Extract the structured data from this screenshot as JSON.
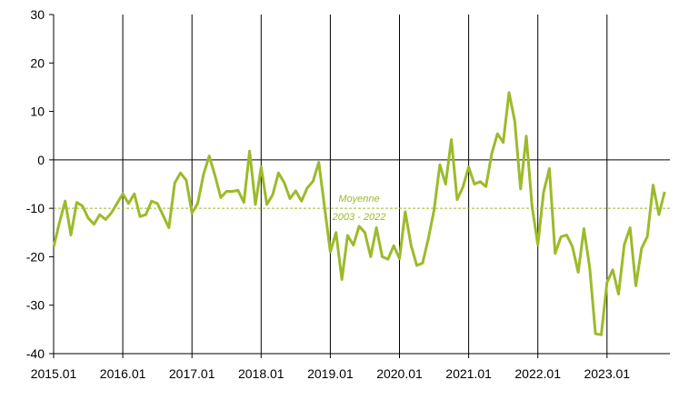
{
  "chart_data": {
    "type": "line",
    "title": "",
    "xlabel": "",
    "ylabel": "",
    "ylim": [
      -40,
      30
    ],
    "yticks": [
      30,
      20,
      10,
      0,
      -10,
      -20,
      -30,
      -40
    ],
    "xticks": [
      "2015.01",
      "2016.01",
      "2017.01",
      "2018.01",
      "2019.01",
      "2020.01",
      "2021.01",
      "2022.01",
      "2023.01"
    ],
    "vertical_gridlines": true,
    "horizontal_gridlines": false,
    "legend": "none",
    "line_color": "#9bbb2a",
    "reference_line": {
      "value": -10,
      "label_line1": "Moyenne",
      "label_line2": "2003 - 2022",
      "style": "dashed",
      "color": "#9bbb2a"
    },
    "x_start": "2015.01",
    "series": [
      {
        "values": [
          -18,
          -13,
          -8.5,
          -15.5,
          -8.8,
          -9.5,
          -12,
          -13.3,
          -11.3,
          -12.3,
          -11,
          -9,
          -7,
          -9,
          -7,
          -11.7,
          -11.3,
          -8.5,
          -9,
          -11.5,
          -14,
          -4.8,
          -2.7,
          -4.2,
          -11,
          -9,
          -3,
          0.8,
          -3.3,
          -7.8,
          -6.5,
          -6.5,
          -6.3,
          -8.8,
          1.8,
          -9.2,
          -1.5,
          -9.2,
          -7.2,
          -2.7,
          -4.7,
          -8,
          -6.4,
          -8.5,
          -5.8,
          -4.4,
          -0.5,
          -9.8,
          -19,
          -15,
          -24.7,
          -15.6,
          -17.6,
          -13.7,
          -15,
          -20,
          -14,
          -20,
          -20.5,
          -17.7,
          -20.4,
          -10.7,
          -17.6,
          -21.8,
          -21.3,
          -16.3,
          -10.4,
          -1,
          -5,
          4.2,
          -8.2,
          -5.6,
          -1.5,
          -5,
          -4.5,
          -5.5,
          1.3,
          5.4,
          3.6,
          13.9,
          8,
          -6,
          4.9,
          -9.7,
          -17.5,
          -6.7,
          -1.8,
          -19.3,
          -15.9,
          -15.5,
          -17.9,
          -23.2,
          -14.2,
          -22.3,
          -35.9,
          -36.1,
          -25.3,
          -22.7,
          -27.7,
          -17.5,
          -14,
          -26,
          -18.3,
          -15.8,
          -5.2,
          -11.3,
          -6.6
        ]
      }
    ]
  }
}
